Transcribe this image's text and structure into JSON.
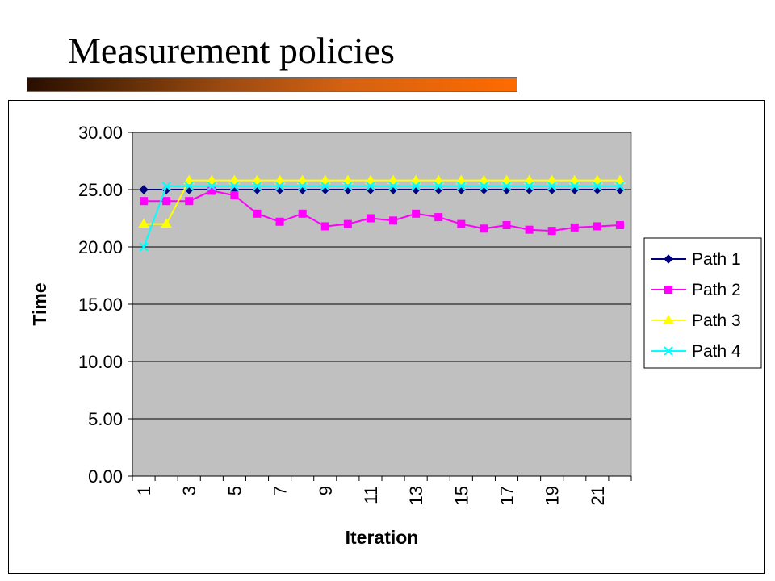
{
  "slide": {
    "title": "Measurement policies"
  },
  "colors": {
    "plot_background": "#c0c0c0",
    "gridline": "#000000",
    "title_bar_start": "#2a0e00",
    "title_bar_end": "#ff6a00"
  },
  "chart_data": {
    "type": "line",
    "xlabel": "Iteration",
    "ylabel": "Time",
    "ylim": [
      0,
      30
    ],
    "y_ticks": [
      "0.00",
      "5.00",
      "10.00",
      "15.00",
      "20.00",
      "25.00",
      "30.00"
    ],
    "categories": [
      1,
      2,
      3,
      4,
      5,
      6,
      7,
      8,
      9,
      10,
      11,
      12,
      13,
      14,
      15,
      16,
      17,
      18,
      19,
      20,
      21,
      22
    ],
    "x_tick_labels": [
      "1",
      "3",
      "5",
      "7",
      "9",
      "11",
      "13",
      "15",
      "17",
      "19",
      "21"
    ],
    "grid": true,
    "legend_position": "right",
    "series": [
      {
        "name": "Path 1",
        "color": "#000080",
        "marker": "diamond",
        "values": [
          25.0,
          25.0,
          25.0,
          25.0,
          25.0,
          25.0,
          25.0,
          25.0,
          25.0,
          25.0,
          25.0,
          25.0,
          25.0,
          25.0,
          25.0,
          25.0,
          25.0,
          25.0,
          25.0,
          25.0,
          25.0,
          25.0
        ]
      },
      {
        "name": "Path 2",
        "color": "#ff00ff",
        "marker": "square",
        "values": [
          24.0,
          24.0,
          24.0,
          24.9,
          24.5,
          22.9,
          22.2,
          22.9,
          21.8,
          22.0,
          22.5,
          22.3,
          22.9,
          22.6,
          22.0,
          21.6,
          21.9,
          21.5,
          21.4,
          21.7,
          21.8,
          21.9
        ]
      },
      {
        "name": "Path 3",
        "color": "#ffff00",
        "marker": "triangle",
        "values": [
          22.0,
          22.0,
          25.8,
          25.8,
          25.8,
          25.8,
          25.8,
          25.8,
          25.8,
          25.8,
          25.8,
          25.8,
          25.8,
          25.8,
          25.8,
          25.8,
          25.8,
          25.8,
          25.8,
          25.8,
          25.8,
          25.8
        ]
      },
      {
        "name": "Path 4",
        "color": "#00ffff",
        "marker": "x",
        "values": [
          20.0,
          25.3,
          25.3,
          25.3,
          25.3,
          25.3,
          25.3,
          25.3,
          25.3,
          25.3,
          25.3,
          25.3,
          25.3,
          25.3,
          25.3,
          25.3,
          25.3,
          25.3,
          25.3,
          25.3,
          25.3,
          25.3
        ]
      }
    ]
  }
}
